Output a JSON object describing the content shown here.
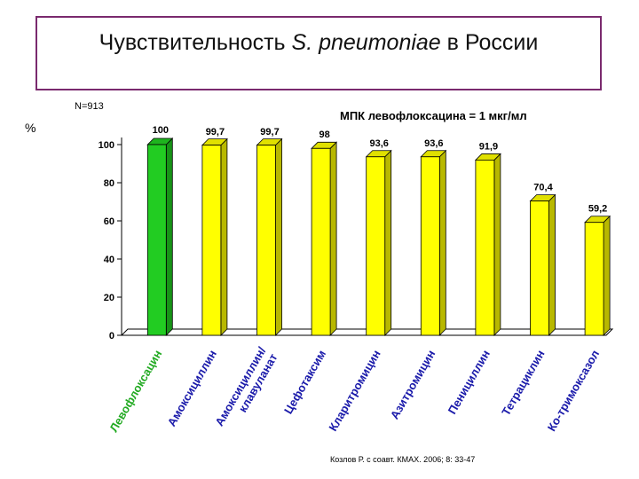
{
  "title": {
    "prefix": "Чувствительность ",
    "italic": "S. pneumoniae",
    "suffix": " в России"
  },
  "sample_size": "N=913",
  "y_unit": "%",
  "annotation": "МПК левофлоксацина = 1 мкг/мл",
  "citation": "Козлов Р. с соавт. КМАХ. 2006; 8: 33-47",
  "colors": {
    "highlight": "#22cc22",
    "bar": "#ffff00",
    "title_border": "#7a2a6e",
    "highlight_label": "#22aa22",
    "label": "#1a1aaa"
  },
  "chart_data": {
    "type": "bar",
    "categories": [
      "Левофлоксацин",
      "Амоксициллин",
      "Амоксициллин/ клавуланат",
      "Цефотаксим",
      "Кларитромицин",
      "Азитромицин",
      "Пенициллин",
      "Тетрациклин",
      "Ко-тримоксазол"
    ],
    "values": [
      100,
      99.7,
      99.7,
      98,
      93.6,
      93.6,
      91.9,
      70.4,
      59.2
    ],
    "value_labels": [
      "100",
      "99,7",
      "99,7",
      "98",
      "93,6",
      "93,6",
      "91,9",
      "70,4",
      "59,2"
    ],
    "highlight_index": 0,
    "y_ticks": [
      0,
      20,
      40,
      60,
      80,
      100
    ],
    "ylim": [
      0,
      100
    ],
    "ylabel": "%",
    "xlabel": "",
    "grid": false
  }
}
